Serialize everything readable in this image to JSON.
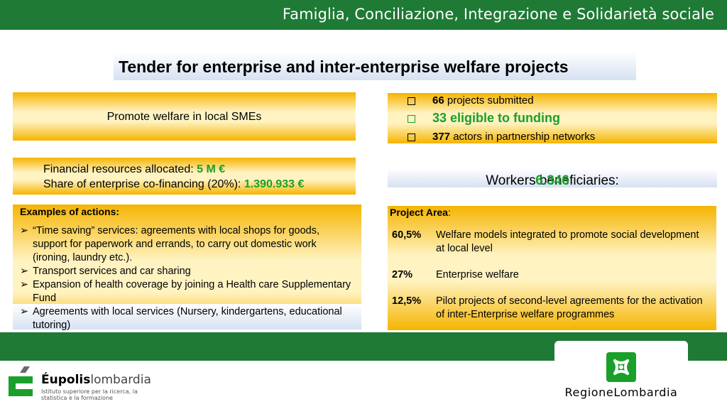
{
  "header": {
    "title": "Famiglia, Conciliazione, Integrazione e Solidarietà sociale"
  },
  "tender": {
    "title": "Tender for enterprise and inter-enterprise welfare projects"
  },
  "promote": {
    "text": "Promote welfare in local SMEs"
  },
  "finance": {
    "resources_label": "Financial resources allocated: ",
    "resources_value": "5 M €",
    "cofinancing_label": "Share of enterprise co-financing (20%): ",
    "cofinancing_value": "1.390.933 €"
  },
  "stats": {
    "submitted_num": "66",
    "submitted_text": " projects submitted",
    "eligible_text": "33 eligible to funding",
    "actors_num": "377",
    "actors_text": " actors in partnership networks"
  },
  "workers": {
    "label": "Workers beneficiaries: ",
    "value": "6.346"
  },
  "examples": {
    "heading": "Examples of actions:",
    "items": [
      "“Time saving” services: agreements with local shops for goods, support for paperwork and errands, to carry out domestic work (ironing, laundry etc.).",
      "Transport services and car sharing",
      "Expansion of health coverage by joining a Health care Supplementary Fund",
      "Agreements with local services (Nursery, kindergartens, educational tutoring)"
    ]
  },
  "project_area": {
    "heading": "Project Area",
    "colon": ":",
    "rows": [
      {
        "pct": "60,5%",
        "desc": "Welfare models integrated to promote social development at local level"
      },
      {
        "pct": "27%",
        "desc": "Enterprise welfare"
      },
      {
        "pct": "12,5%",
        "desc": "Pilot projects of second-level agreements for the activation of inter-Enterprise  welfare programmes"
      }
    ]
  },
  "footer": {
    "eupolis_bold": "Éupolis",
    "eupolis_light": "lombardia",
    "eupolis_sub": "Istituto superiore per la ricerca, la statistica e la formazione",
    "region": "RegioneLombardia"
  },
  "colors": {
    "green_bar": "#1e7a35",
    "accent_green": "#1aa02a",
    "gold": "#f5b400",
    "blue_fade": "#d6e1f2"
  }
}
